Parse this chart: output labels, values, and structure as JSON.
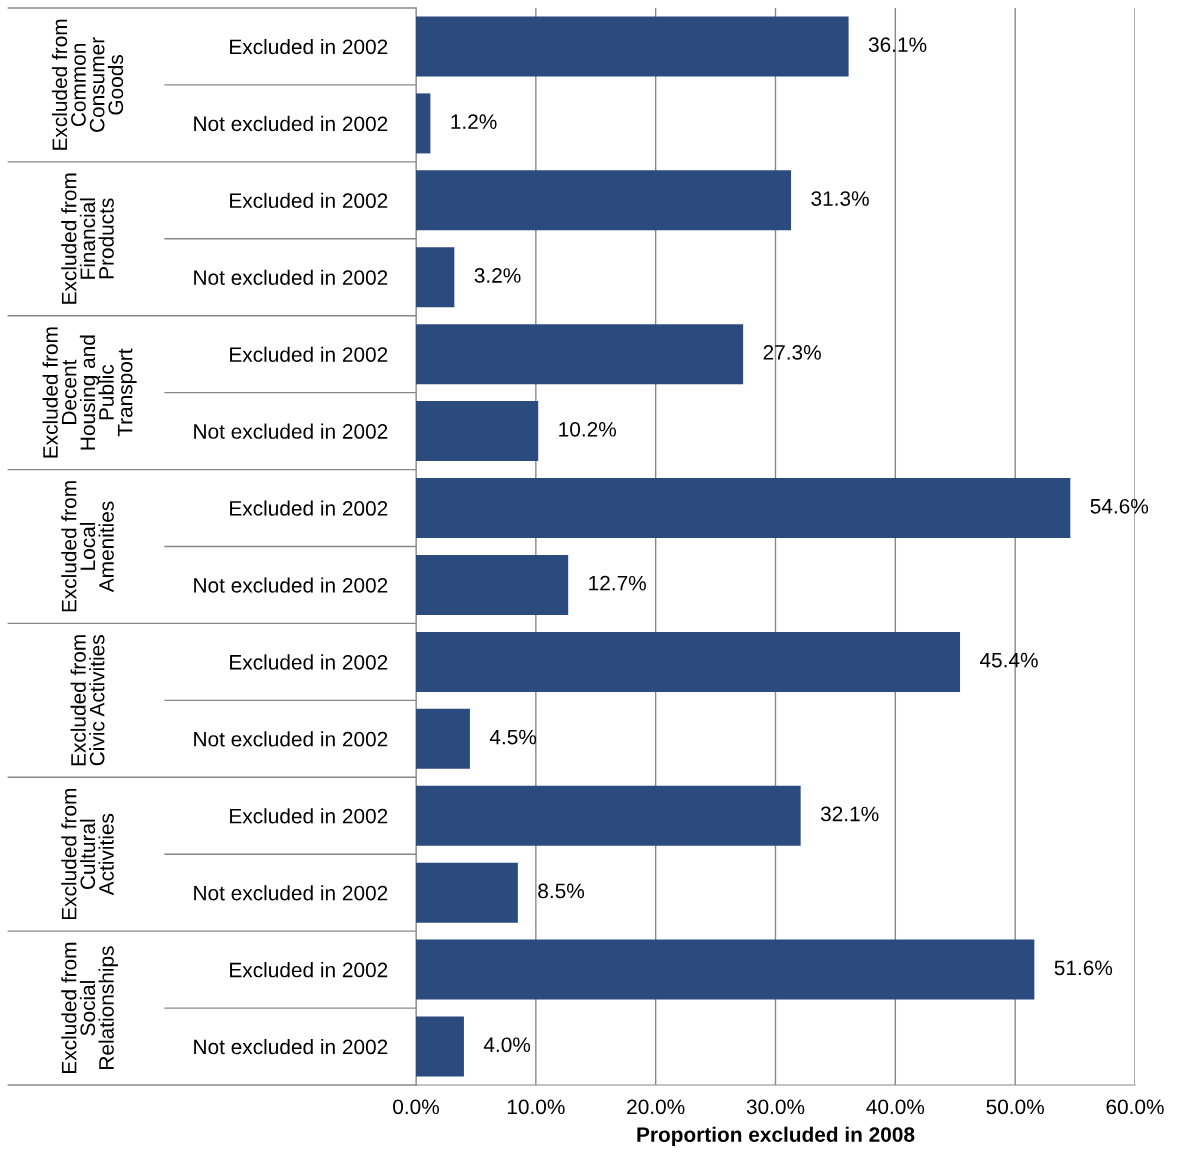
{
  "chart_data": {
    "type": "bar",
    "orientation": "horizontal",
    "xlabel": "Proportion excluded in 2008",
    "categories": [
      "Excluded in 2002",
      "Not excluded in 2002",
      "Excluded in 2002",
      "Not excluded in 2002",
      "Excluded in 2002",
      "Not excluded in 2002",
      "Excluded in 2002",
      "Not excluded in 2002",
      "Excluded in 2002",
      "Not excluded in 2002",
      "Excluded in 2002",
      "Not excluded in 2002",
      "Excluded in 2002",
      "Not excluded in 2002"
    ],
    "values": [
      36.1,
      1.2,
      31.3,
      3.2,
      27.3,
      10.2,
      54.6,
      12.7,
      45.4,
      4.5,
      32.1,
      8.5,
      51.6,
      4.0
    ],
    "value_labels": [
      "36.1%",
      "1.2%",
      "31.3%",
      "3.2%",
      "27.3%",
      "10.2%",
      "54.6%",
      "12.7%",
      "45.4%",
      "4.5%",
      "32.1%",
      "8.5%",
      "51.6%",
      "4.0%"
    ],
    "color": "#2b4a7e",
    "annotations": [
      "Excluded from\nCommon\nConsumer\nGoods",
      "Excluded from\nFinancial\nProducts",
      "Excluded from\nDecent\nHousing and\nPublic\nTransport",
      "Excluded from\nLocal\nAmenities",
      "Excluded from\nCivic Activities",
      "Excluded from\nCultural\nActivities",
      "Excluded from\nSocial\nRelationships"
    ],
    "xlim": [
      0,
      60
    ],
    "xticks": [
      {
        "value": 0,
        "label": "0.0%"
      },
      {
        "value": 10,
        "label": "10.0%"
      },
      {
        "value": 20,
        "label": "20.0%"
      },
      {
        "value": 30,
        "label": "30.0%"
      },
      {
        "value": 40,
        "label": "40.0%"
      },
      {
        "value": 50,
        "label": "50.0%"
      },
      {
        "value": 60,
        "label": "60.0%"
      }
    ],
    "grid": "x"
  }
}
